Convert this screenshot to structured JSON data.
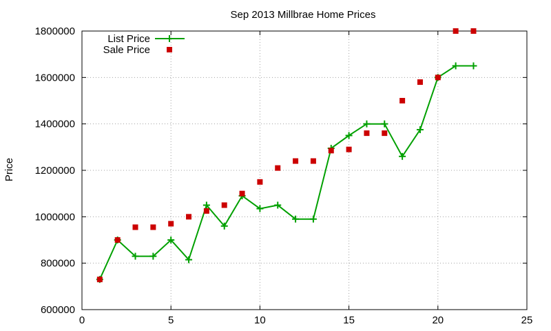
{
  "chart_data": {
    "type": "line",
    "title": "Sep 2013 Millbrae Home Prices",
    "xlabel": "",
    "ylabel": "Price",
    "xlim": [
      0,
      25
    ],
    "ylim": [
      600000,
      1800000
    ],
    "xticks": [
      0,
      5,
      10,
      15,
      20,
      25
    ],
    "yticks": [
      600000,
      800000,
      1000000,
      1200000,
      1400000,
      1600000,
      1800000
    ],
    "grid": true,
    "legend_position": "top-left",
    "series": [
      {
        "name": "List Price",
        "style": "line+plus",
        "color": "#00a000",
        "x": [
          1,
          2,
          3,
          4,
          5,
          6,
          7,
          8,
          9,
          10,
          11,
          12,
          13,
          14,
          15,
          16,
          17,
          18,
          19,
          20,
          21,
          22
        ],
        "y": [
          730000,
          900000,
          830000,
          830000,
          900000,
          815000,
          1050000,
          960000,
          1090000,
          1035000,
          1050000,
          990000,
          990000,
          1295000,
          1350000,
          1400000,
          1400000,
          1260000,
          1375000,
          1600000,
          1650000,
          1650000
        ]
      },
      {
        "name": "Sale Price",
        "style": "square",
        "color": "#cc0000",
        "x": [
          1,
          2,
          3,
          4,
          5,
          6,
          7,
          8,
          9,
          10,
          11,
          12,
          13,
          14,
          15,
          16,
          17,
          18,
          19,
          20,
          21,
          22
        ],
        "y": [
          730000,
          900000,
          955000,
          955000,
          970000,
          1000000,
          1025000,
          1050000,
          1100000,
          1150000,
          1210000,
          1240000,
          1240000,
          1285000,
          1290000,
          1360000,
          1360000,
          1500000,
          1580000,
          1600000,
          1800000,
          1800000
        ]
      }
    ]
  }
}
